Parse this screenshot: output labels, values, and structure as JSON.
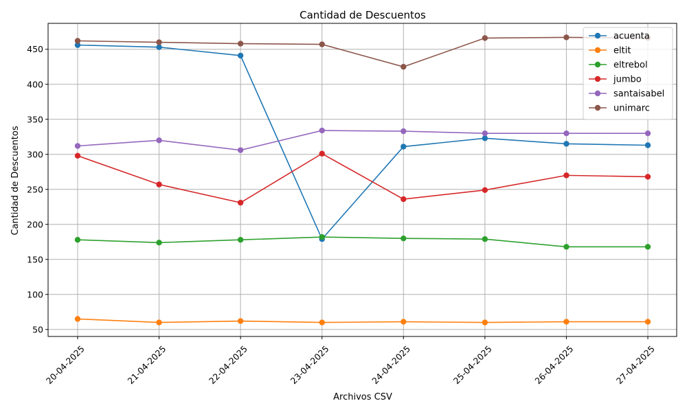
{
  "chart_data": {
    "type": "line",
    "title": "Cantidad de Descuentos",
    "xlabel": "Archivos CSV",
    "ylabel": "Cantidad de Descuentos",
    "categories": [
      "20-04-2025",
      "21-04-2025",
      "22-04-2025",
      "23-04-2025",
      "24-04-2025",
      "25-04-2025",
      "26-04-2025",
      "27-04-2025"
    ],
    "ylim": [
      40,
      487
    ],
    "yticks": [
      50,
      100,
      150,
      200,
      250,
      300,
      350,
      400,
      450
    ],
    "grid": true,
    "legend_position": "top-right",
    "marker": "circle",
    "series": [
      {
        "name": "acuenta",
        "color": "#1f77b4",
        "values": [
          456,
          453,
          441,
          179,
          311,
          323,
          315,
          313
        ]
      },
      {
        "name": "eltit",
        "color": "#ff7f0e",
        "values": [
          65,
          60,
          62,
          60,
          61,
          60,
          61,
          61
        ]
      },
      {
        "name": "eltrebol",
        "color": "#2ca02c",
        "values": [
          178,
          174,
          178,
          182,
          180,
          179,
          168,
          168
        ]
      },
      {
        "name": "jumbo",
        "color": "#d62728",
        "values": [
          298,
          257,
          231,
          301,
          236,
          249,
          270,
          268
        ]
      },
      {
        "name": "santaisabel",
        "color": "#9467bd",
        "values": [
          312,
          320,
          306,
          334,
          333,
          330,
          330,
          330
        ]
      },
      {
        "name": "unimarc",
        "color": "#8c564b",
        "values": [
          462,
          460,
          458,
          457,
          425,
          466,
          467,
          466
        ]
      }
    ]
  }
}
